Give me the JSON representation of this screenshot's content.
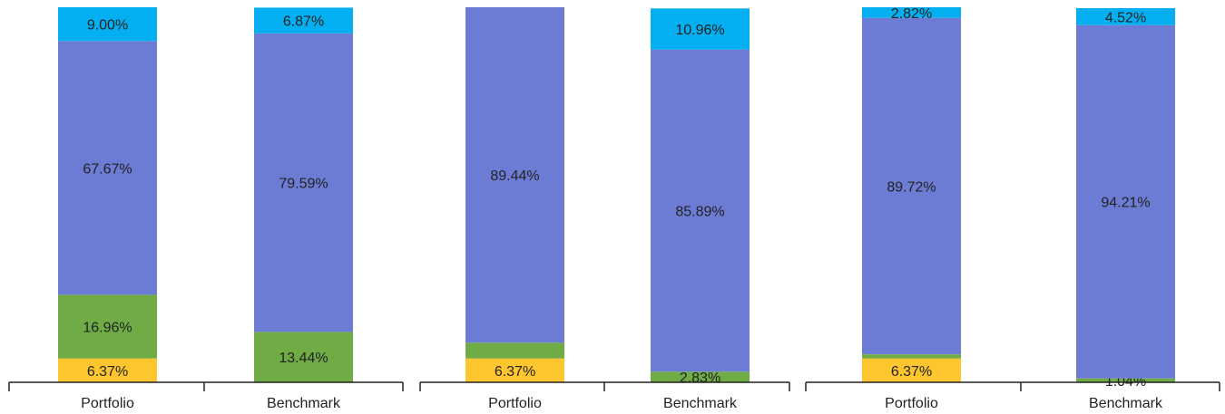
{
  "colors": {
    "cyan": "#03aff0",
    "blue": "#6c7cd4",
    "green": "#6fac46",
    "yellow": "#fdc62e"
  },
  "chart_data": [
    {
      "type": "bar",
      "stacked": true,
      "categories": [
        "Portfolio",
        "Benchmark"
      ],
      "series": [
        {
          "color": "#fdc62e",
          "values": [
            6.37,
            0
          ]
        },
        {
          "color": "#6fac46",
          "values": [
            16.96,
            13.44
          ]
        },
        {
          "color": "#6c7cd4",
          "values": [
            67.67,
            79.59
          ]
        },
        {
          "color": "#03aff0",
          "values": [
            9.0,
            6.87
          ]
        }
      ],
      "labels": [
        [
          "6.37%",
          ""
        ],
        [
          "16.96%",
          "13.44%"
        ],
        [
          "67.67%",
          "79.59%"
        ],
        [
          "9.00%",
          "6.87%"
        ]
      ],
      "ylim": [
        0,
        100
      ]
    },
    {
      "type": "bar",
      "stacked": true,
      "categories": [
        "Portfolio",
        "Benchmark"
      ],
      "series": [
        {
          "color": "#fdc62e",
          "values": [
            6.37,
            0
          ]
        },
        {
          "color": "#6fac46",
          "values": [
            4.19,
            2.83
          ]
        },
        {
          "color": "#6c7cd4",
          "values": [
            89.44,
            85.89
          ]
        },
        {
          "color": "#03aff0",
          "values": [
            0,
            10.96
          ]
        }
      ],
      "labels": [
        [
          "6.37%",
          ""
        ],
        [
          "",
          "2.83%"
        ],
        [
          "89.44%",
          "85.89%"
        ],
        [
          "",
          "10.96%"
        ]
      ],
      "ylim": [
        0,
        100
      ]
    },
    {
      "type": "bar",
      "stacked": true,
      "categories": [
        "Portfolio",
        "Benchmark"
      ],
      "series": [
        {
          "color": "#fdc62e",
          "values": [
            6.37,
            0
          ]
        },
        {
          "color": "#6fac46",
          "values": [
            1.09,
            1.04
          ]
        },
        {
          "color": "#6c7cd4",
          "values": [
            89.72,
            94.21
          ]
        },
        {
          "color": "#03aff0",
          "values": [
            2.82,
            4.52
          ]
        }
      ],
      "labels": [
        [
          "6.37%",
          ""
        ],
        [
          "",
          "1.04%"
        ],
        [
          "89.72%",
          "94.21%"
        ],
        [
          "2.82%",
          "4.52%"
        ]
      ],
      "ylim": [
        0,
        100
      ]
    }
  ]
}
